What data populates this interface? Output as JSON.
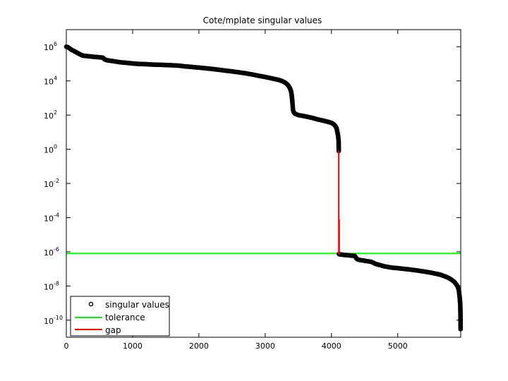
{
  "chart_data": {
    "type": "scatter",
    "title": "Cote/mplate singular values",
    "xlabel": "",
    "ylabel": "",
    "yscale": "log",
    "xlim": [
      0,
      5950
    ],
    "ylim": [
      1e-11,
      10000000.0
    ],
    "xticks": [
      {
        "value": 0,
        "label": "0"
      },
      {
        "value": 1000,
        "label": "1000"
      },
      {
        "value": 2000,
        "label": "2000"
      },
      {
        "value": 3000,
        "label": "3000"
      },
      {
        "value": 4000,
        "label": "4000"
      },
      {
        "value": 5000,
        "label": "5000"
      }
    ],
    "yticks": [
      {
        "exp": 6,
        "base": "10",
        "sup": "6"
      },
      {
        "exp": 4,
        "base": "10",
        "sup": "4"
      },
      {
        "exp": 2,
        "base": "10",
        "sup": "2"
      },
      {
        "exp": 0,
        "base": "10",
        "sup": "0"
      },
      {
        "exp": -2,
        "base": "10",
        "sup": "-2"
      },
      {
        "exp": -4,
        "base": "10",
        "sup": "-4"
      },
      {
        "exp": -6,
        "base": "10",
        "sup": "-6"
      },
      {
        "exp": -8,
        "base": "10",
        "sup": "-8"
      },
      {
        "exp": -10,
        "base": "10",
        "sup": "-10"
      }
    ],
    "grid": false,
    "legend_position": "bottom-left",
    "series": [
      {
        "name": "singular values",
        "marker": "circle",
        "color": "#000000",
        "points": [
          [
            0,
            1000000.0
          ],
          [
            20,
            950000.0
          ],
          [
            40,
            850000.0
          ],
          [
            60,
            750000.0
          ],
          [
            80,
            650000.0
          ],
          [
            100,
            600000.0
          ],
          [
            120,
            550000.0
          ],
          [
            140,
            500000.0
          ],
          [
            160,
            450000.0
          ],
          [
            180,
            410000.0
          ],
          [
            200,
            370000.0
          ],
          [
            220,
            340000.0
          ],
          [
            240,
            310000.0
          ],
          [
            260,
            300000.0
          ],
          [
            280,
            290000.0
          ],
          [
            300,
            285000.0
          ],
          [
            350,
            275000.0
          ],
          [
            400,
            260000.0
          ],
          [
            450,
            250000.0
          ],
          [
            500,
            240000.0
          ],
          [
            550,
            230000.0
          ],
          [
            580,
            180000.0
          ],
          [
            620,
            160000.0
          ],
          [
            700,
            145000.0
          ],
          [
            800,
            125000.0
          ],
          [
            900,
            115000.0
          ],
          [
            1000,
            105000.0
          ],
          [
            1100,
            98000.0
          ],
          [
            1200,
            95000.0
          ],
          [
            1300,
            90000.0
          ],
          [
            1400,
            88000.0
          ],
          [
            1500,
            85000.0
          ],
          [
            1600,
            82000.0
          ],
          [
            1700,
            78000.0
          ],
          [
            1800,
            70000.0
          ],
          [
            1900,
            65000.0
          ],
          [
            2000,
            60000.0
          ],
          [
            2100,
            55000.0
          ],
          [
            2200,
            50000.0
          ],
          [
            2300,
            45000.0
          ],
          [
            2400,
            40000.0
          ],
          [
            2500,
            36000.0
          ],
          [
            2600,
            32000.0
          ],
          [
            2700,
            28000.0
          ],
          [
            2800,
            24000.0
          ],
          [
            2900,
            20000.0
          ],
          [
            3000,
            17000.0
          ],
          [
            3100,
            14000.0
          ],
          [
            3200,
            11500.0
          ],
          [
            3250,
            10000.0
          ],
          [
            3300,
            8000.0
          ],
          [
            3340,
            6000.0
          ],
          [
            3370,
            4000.0
          ],
          [
            3390,
            2500.0
          ],
          [
            3400,
            1500.0
          ],
          [
            3410,
            600.0
          ],
          [
            3415,
            350.0
          ],
          [
            3420,
            200.0
          ],
          [
            3430,
            150.0
          ],
          [
            3450,
            120.0
          ],
          [
            3500,
            100.0
          ],
          [
            3600,
            85.0
          ],
          [
            3700,
            70.0
          ],
          [
            3800,
            55.0
          ],
          [
            3900,
            45.0
          ],
          [
            3950,
            40.0
          ],
          [
            4000,
            35.0
          ],
          [
            4030,
            30.0
          ],
          [
            4050,
            25.0
          ],
          [
            4070,
            20.0
          ],
          [
            4080,
            15.0
          ],
          [
            4090,
            10.0
          ],
          [
            4100,
            6.0
          ],
          [
            4105,
            4.0
          ],
          [
            4108,
            3.0
          ],
          [
            4110,
            0.8
          ],
          [
            4112,
            7.5e-07
          ],
          [
            4130,
            7e-07
          ],
          [
            4160,
            6.8e-07
          ],
          [
            4200,
            6.5e-07
          ],
          [
            4250,
            6.3e-07
          ],
          [
            4300,
            6e-07
          ],
          [
            4350,
            5.8e-07
          ],
          [
            4380,
            4e-07
          ],
          [
            4400,
            3.5e-07
          ],
          [
            4450,
            3.2e-07
          ],
          [
            4500,
            3e-07
          ],
          [
            4550,
            2.8e-07
          ],
          [
            4600,
            2.6e-07
          ],
          [
            4630,
            2.3e-07
          ],
          [
            4660,
            2e-07
          ],
          [
            4700,
            1.8e-07
          ],
          [
            4750,
            1.6e-07
          ],
          [
            4800,
            1.4e-07
          ],
          [
            4850,
            1.3e-07
          ],
          [
            4900,
            1.2e-07
          ],
          [
            5000,
            1.1e-07
          ],
          [
            5100,
            1e-07
          ],
          [
            5200,
            9e-08
          ],
          [
            5300,
            8e-08
          ],
          [
            5400,
            7e-08
          ],
          [
            5500,
            6e-08
          ],
          [
            5600,
            5e-08
          ],
          [
            5650,
            4.5e-08
          ],
          [
            5700,
            3.8e-08
          ],
          [
            5750,
            3.2e-08
          ],
          [
            5800,
            2.5e-08
          ],
          [
            5850,
            1.8e-08
          ],
          [
            5880,
            1.3e-08
          ],
          [
            5900,
            1e-08
          ],
          [
            5910,
            8e-09
          ],
          [
            5920,
            6e-09
          ],
          [
            5925,
            4.5e-09
          ],
          [
            5930,
            3e-09
          ],
          [
            5935,
            2e-09
          ],
          [
            5938,
            1.5e-09
          ],
          [
            5940,
            1.1e-09
          ],
          [
            5942,
            1e-09
          ],
          [
            5945,
            4e-10
          ],
          [
            5947,
            1e-10
          ],
          [
            5948,
            3e-11
          ]
        ]
      },
      {
        "name": "tolerance",
        "color": "#00ff00",
        "y": 8e-07
      },
      {
        "name": "gap",
        "color": "#ff0000",
        "x": 4110,
        "y_from": 7.5e-07,
        "y_to": 0.8,
        "sub_x": 4120,
        "sub_y_from": 7e-07,
        "sub_y_to": 8e-05
      }
    ]
  }
}
